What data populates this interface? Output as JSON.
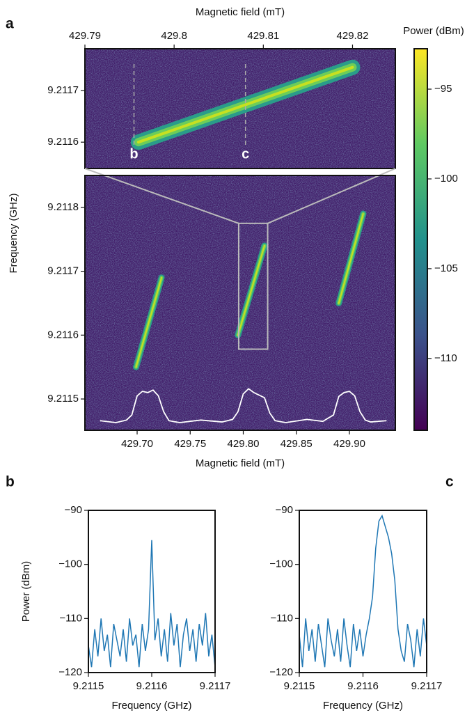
{
  "chart_data": [
    {
      "type": "heatmap",
      "panel": "a",
      "xlabel": "Magnetic field (mT)",
      "xlim": [
        429.79,
        429.8248
      ],
      "xticks": [
        429.79,
        429.8,
        429.81,
        429.82
      ],
      "ylim": [
        9.211549,
        9.211781
      ],
      "yticks": [
        9.2116,
        9.2117
      ],
      "streaks": [
        {
          "x": [
            429.796,
            429.82
          ],
          "y": [
            9.2116,
            9.211745
          ]
        }
      ],
      "annotations": [
        {
          "text": "b",
          "x": 429.7955
        },
        {
          "text": "c",
          "x": 429.808
        }
      ]
    },
    {
      "type": "heatmap",
      "xlabel": "Magnetic field (mT)",
      "ylabel": "Frequency (GHz)",
      "xlim": [
        429.6508,
        429.9433
      ],
      "xticks": [
        {
          "value": 429.7,
          "label": "429.70"
        },
        429.75,
        {
          "value": 429.8,
          "label": "429.80"
        },
        429.85,
        {
          "value": 429.9,
          "label": "429.90"
        }
      ],
      "ylim": [
        9.211451,
        9.21185
      ],
      "yticks": [
        9.2115,
        9.2116,
        9.2117,
        9.2118
      ],
      "streaks": [
        {
          "x": [
            429.699,
            429.723
          ],
          "y": [
            9.21155,
            9.21169
          ]
        },
        {
          "x": [
            429.795,
            429.82
          ],
          "y": [
            9.2116,
            9.21174
          ]
        },
        {
          "x": [
            429.89,
            429.913
          ],
          "y": [
            9.21165,
            9.21179
          ]
        }
      ],
      "zoom_box": {
        "x": [
          429.7957,
          429.823
        ],
        "y": [
          9.211578,
          9.211775
        ]
      },
      "trace": {
        "color": "#ffffff",
        "x": [
          429.665,
          429.68,
          429.69,
          429.695,
          429.7,
          429.705,
          429.71,
          429.715,
          429.72,
          429.725,
          429.73,
          429.74,
          429.76,
          429.78,
          429.79,
          429.795,
          429.8,
          429.805,
          429.81,
          429.815,
          429.82,
          429.825,
          429.83,
          429.84,
          429.86,
          429.875,
          429.885,
          429.89,
          429.895,
          429.9,
          429.905,
          429.91,
          429.915,
          429.92,
          429.935
        ],
        "values": [
          9.211466,
          9.211463,
          9.211467,
          9.211475,
          9.211505,
          9.211512,
          9.21151,
          9.211514,
          9.211505,
          9.21148,
          9.211466,
          9.211463,
          9.211467,
          9.211464,
          9.211468,
          9.21148,
          9.211508,
          9.211516,
          9.21151,
          9.211506,
          9.211502,
          9.211478,
          9.211466,
          9.211463,
          9.211468,
          9.211465,
          9.211475,
          9.211504,
          9.21151,
          9.211512,
          9.211505,
          9.21148,
          9.211467,
          9.211464,
          9.211466
        ]
      },
      "colorbar": {
        "label": "Power (dBm)",
        "lim": [
          -114,
          -92.75
        ],
        "ticks": [
          {
            "value": -95,
            "label": "−95"
          },
          {
            "value": -100,
            "label": "−100"
          },
          {
            "value": -105,
            "label": "−105"
          },
          {
            "value": -110,
            "label": "−110"
          }
        ]
      }
    },
    {
      "type": "line",
      "panel": "b",
      "xlabel": "Frequency (GHz)",
      "ylabel": "Power (dBm)",
      "color": "#1f77b4",
      "xlim": [
        9.2115,
        9.2117
      ],
      "xticks": [
        9.2115,
        9.2116,
        9.2117
      ],
      "ylim": [
        -120,
        -90
      ],
      "yticks": [
        {
          "value": -90,
          "label": "−90"
        },
        {
          "value": -100,
          "label": "−100"
        },
        {
          "value": -110,
          "label": "−110"
        },
        {
          "value": -120,
          "label": "−120"
        }
      ],
      "x": [
        9.2115,
        9.211505,
        9.21151,
        9.211515,
        9.21152,
        9.211525,
        9.21153,
        9.211535,
        9.21154,
        9.211545,
        9.21155,
        9.211555,
        9.21156,
        9.211565,
        9.21157,
        9.211575,
        9.21158,
        9.211585,
        9.21159,
        9.211595,
        9.2116,
        9.211605,
        9.21161,
        9.211615,
        9.21162,
        9.211625,
        9.21163,
        9.211635,
        9.21164,
        9.211645,
        9.21165,
        9.211655,
        9.21166,
        9.211665,
        9.21167,
        9.211675,
        9.21168,
        9.211685,
        9.21169,
        9.211695,
        9.2117
      ],
      "values": [
        -115,
        -119,
        -112,
        -117,
        -110,
        -116,
        -113,
        -119,
        -111,
        -114,
        -117,
        -112,
        -118,
        -110,
        -115,
        -113,
        -119,
        -111,
        -116,
        -112,
        -95.5,
        -114,
        -110,
        -117,
        -112,
        -118,
        -109,
        -115,
        -111,
        -119,
        -113,
        -110,
        -116,
        -112,
        -118,
        -111,
        -115,
        -109,
        -117,
        -113,
        -119
      ]
    },
    {
      "type": "line",
      "panel": "c",
      "xlabel": "Frequency (GHz)",
      "color": "#1f77b4",
      "xlim": [
        9.2115,
        9.2117
      ],
      "xticks": [
        9.2115,
        9.2116,
        9.2117
      ],
      "ylim": [
        -120,
        -90
      ],
      "yticks": [
        {
          "value": -90,
          "label": "−90"
        },
        {
          "value": -100,
          "label": "−100"
        },
        {
          "value": -110,
          "label": "−110"
        },
        {
          "value": -120,
          "label": "−120"
        }
      ],
      "x": [
        9.2115,
        9.211505,
        9.21151,
        9.211515,
        9.21152,
        9.211525,
        9.21153,
        9.211535,
        9.21154,
        9.211545,
        9.21155,
        9.211555,
        9.21156,
        9.211565,
        9.21157,
        9.211575,
        9.21158,
        9.211585,
        9.21159,
        9.211595,
        9.2116,
        9.211605,
        9.21161,
        9.211615,
        9.21162,
        9.211625,
        9.21163,
        9.211635,
        9.21164,
        9.211645,
        9.21165,
        9.211655,
        9.21166,
        9.211665,
        9.21167,
        9.211675,
        9.21168,
        9.211685,
        9.21169,
        9.211695,
        9.2117
      ],
      "values": [
        -113,
        -119,
        -110,
        -116,
        -112,
        -118,
        -111,
        -115,
        -119,
        -110,
        -114,
        -117,
        -112,
        -118,
        -110,
        -115,
        -119,
        -111,
        -116,
        -112,
        -117,
        -113,
        -110,
        -106,
        -97,
        -92,
        -91,
        -93,
        -95,
        -98,
        -103,
        -112,
        -116,
        -118,
        -111,
        -114,
        -119,
        -112,
        -117,
        -110,
        -115
      ]
    }
  ]
}
